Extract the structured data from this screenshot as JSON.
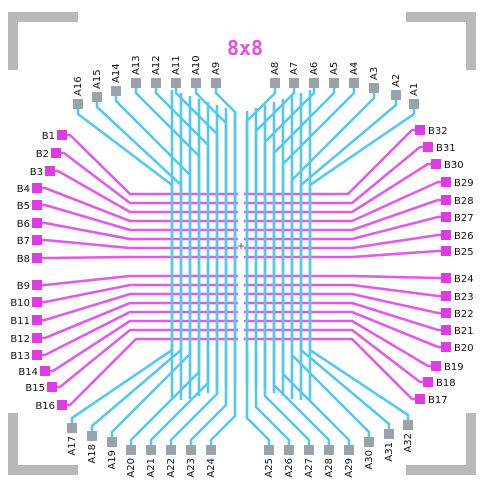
{
  "title": "8x8",
  "colors": {
    "a_trace": "#55c8f0",
    "b_trace": "#e15ce6",
    "a_pad": "#9aa3a8",
    "b_pad": "#de3ce3",
    "corner": "#b9b9b9",
    "title": "#e64ee6"
  },
  "top_left_labels": [
    "A16",
    "A15",
    "A14",
    "A13",
    "A12",
    "A11",
    "A10",
    "A9"
  ],
  "top_right_labels": [
    "A8",
    "A7",
    "A6",
    "A5",
    "A4",
    "A3",
    "A2",
    "A1"
  ],
  "bottom_left_labels": [
    "A17",
    "A18",
    "A19",
    "A20",
    "A21",
    "A22",
    "A23",
    "A24"
  ],
  "bottom_right_labels": [
    "A25",
    "A26",
    "A27",
    "A28",
    "A29",
    "A30",
    "A31",
    "A32"
  ],
  "left_upper_labels": [
    "B1",
    "B2",
    "B3",
    "B4",
    "B5",
    "B6",
    "B7",
    "B8"
  ],
  "left_lower_labels": [
    "B9",
    "B10",
    "B11",
    "B12",
    "B13",
    "B14",
    "B15",
    "B16"
  ],
  "right_upper_labels": [
    "B32",
    "B31",
    "B30",
    "B29",
    "B28",
    "B27",
    "B26",
    "B25"
  ],
  "right_lower_labels": [
    "B24",
    "B23",
    "B22",
    "B21",
    "B20",
    "B19",
    "B18",
    "B17"
  ]
}
